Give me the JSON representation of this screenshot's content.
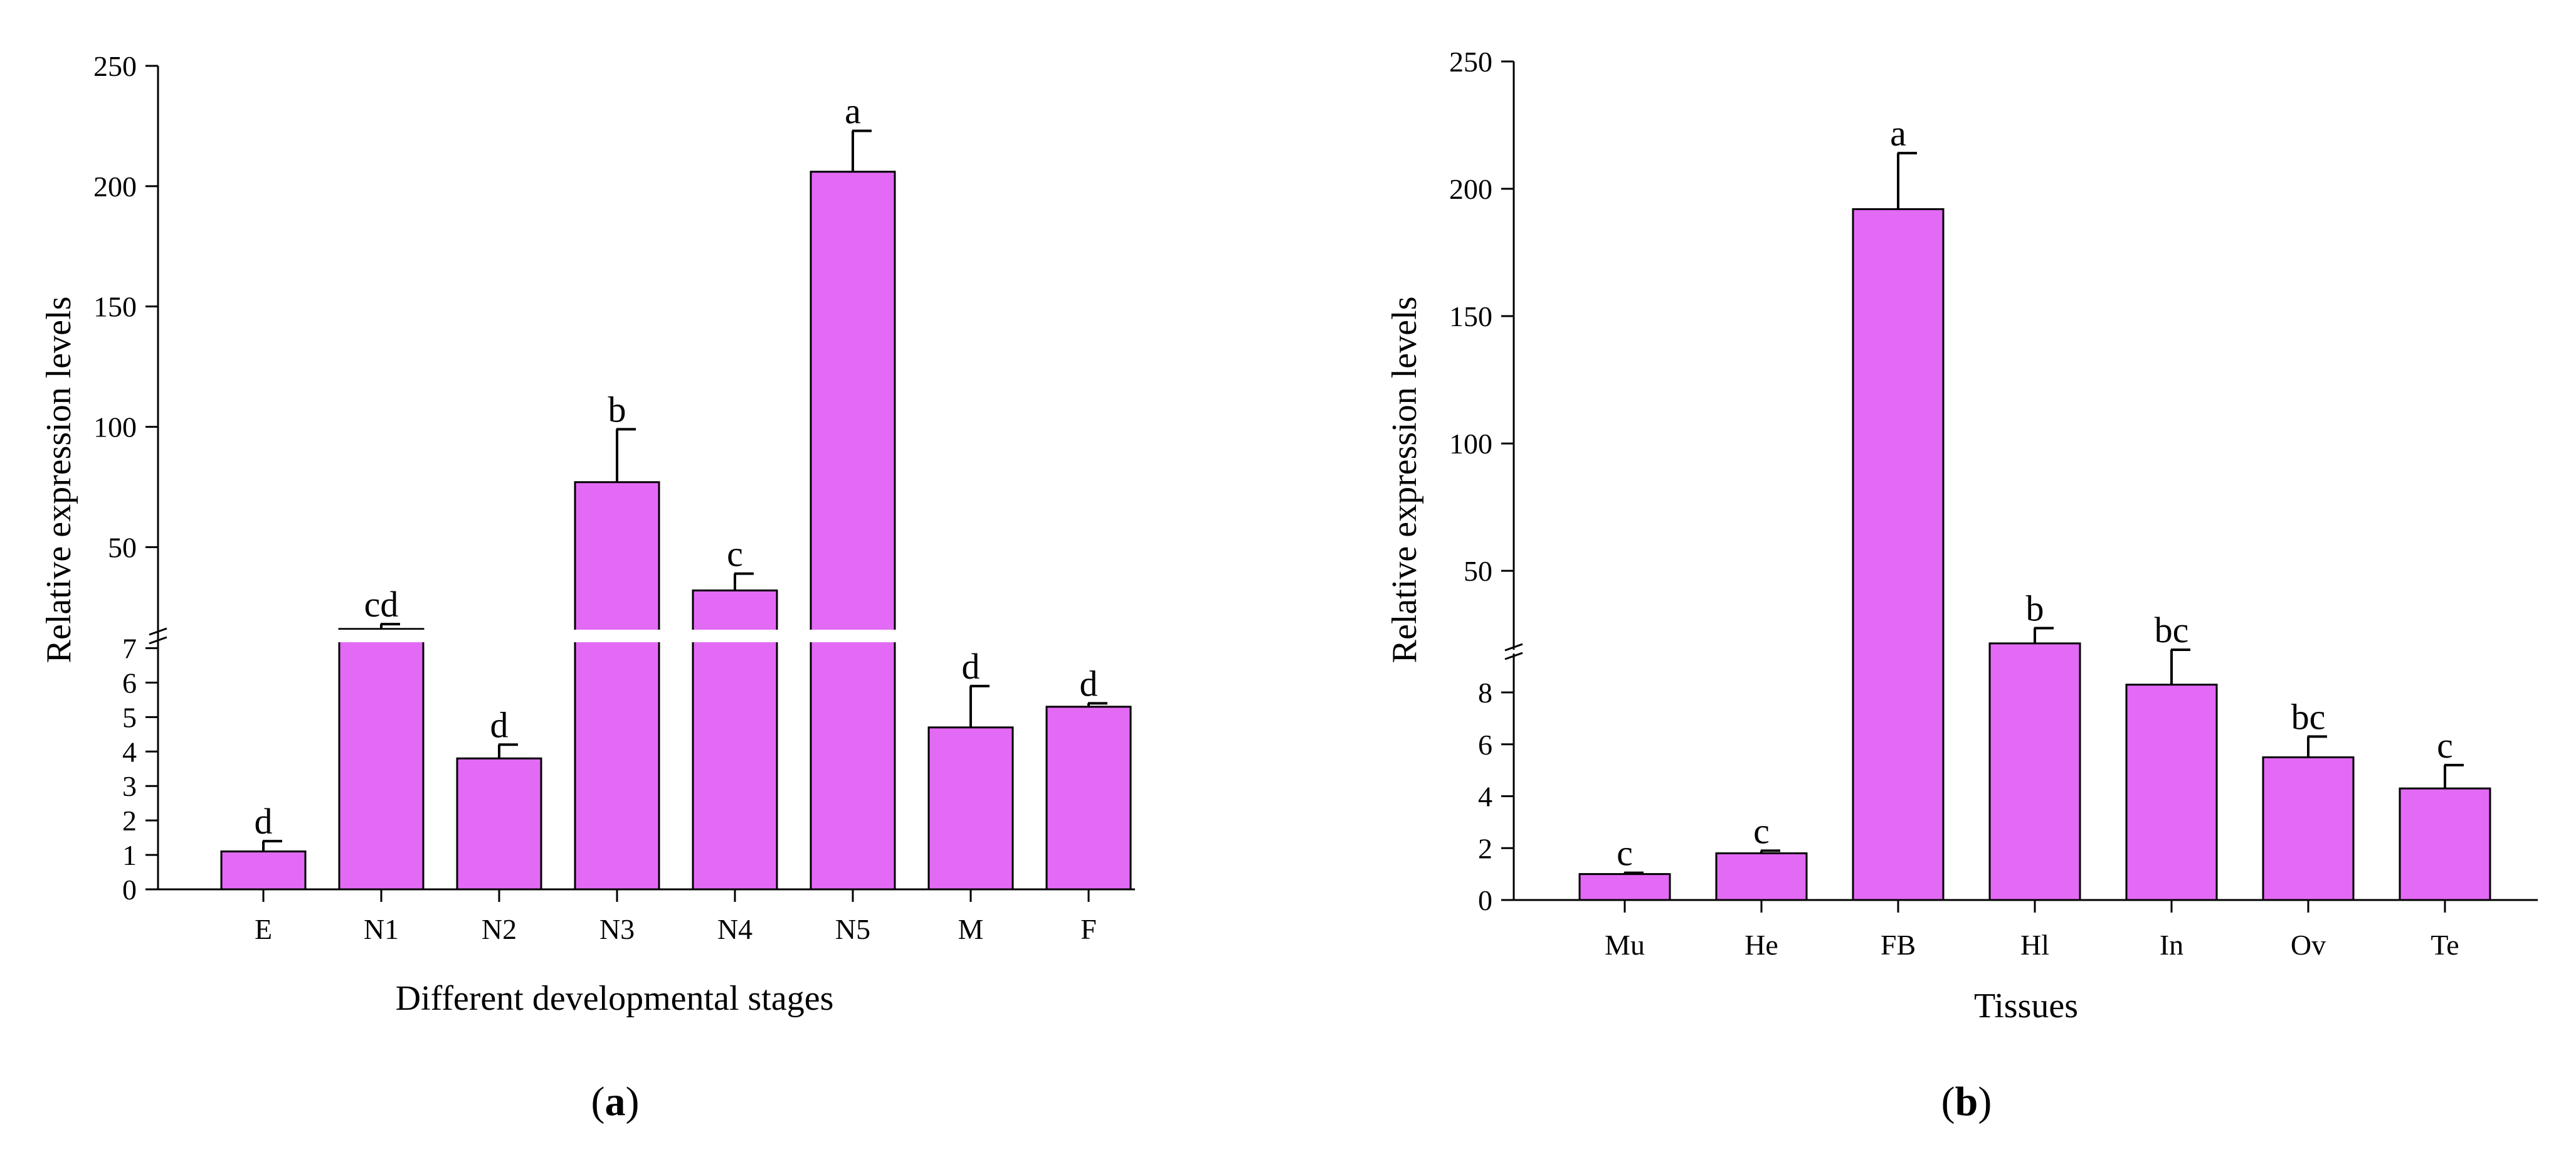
{
  "colors": {
    "bar": "#e36af5",
    "axis": "#000000",
    "background": "#ffffff"
  },
  "chart_data": [
    {
      "type": "bar",
      "panel_label": "a",
      "xlabel": "Different developmental stages",
      "ylabel": "Relative expression levels",
      "axis_break": true,
      "lower_ylim": [
        0,
        7.5
      ],
      "upper_ylim": [
        11,
        250
      ],
      "lower_yticks": [
        0,
        1,
        2,
        3,
        4,
        5,
        6,
        7
      ],
      "upper_yticks": [
        50,
        100,
        150,
        200,
        250
      ],
      "categories": [
        "E",
        "N1",
        "N2",
        "N3",
        "N4",
        "N5",
        "M",
        "F"
      ],
      "values": [
        1.1,
        16,
        3.8,
        77,
        32,
        206,
        4.7,
        5.3
      ],
      "errors": [
        0.3,
        2,
        0.4,
        22,
        7,
        17,
        1.2,
        0.1
      ],
      "significance": [
        "d",
        "cd",
        "d",
        "b",
        "c",
        "a",
        "d",
        "d"
      ]
    },
    {
      "type": "bar",
      "panel_label": "b",
      "xlabel": "Tissues",
      "ylabel": "Relative expression levels",
      "axis_break": true,
      "lower_ylim": [
        0,
        9.5
      ],
      "upper_ylim": [
        19,
        250
      ],
      "lower_yticks": [
        0,
        2,
        4,
        6,
        8
      ],
      "upper_yticks": [
        50,
        100,
        150,
        200,
        250
      ],
      "categories": [
        "Mu",
        "He",
        "FB",
        "Hl",
        "In",
        "Ov",
        "Te"
      ],
      "values": [
        1.0,
        1.8,
        192,
        21.5,
        8.3,
        5.5,
        4.3
      ],
      "errors": [
        0.05,
        0.1,
        22,
        6,
        1.4,
        0.8,
        0.9
      ],
      "significance": [
        "c",
        "c",
        "a",
        "b",
        "bc",
        "bc",
        "c"
      ]
    }
  ]
}
